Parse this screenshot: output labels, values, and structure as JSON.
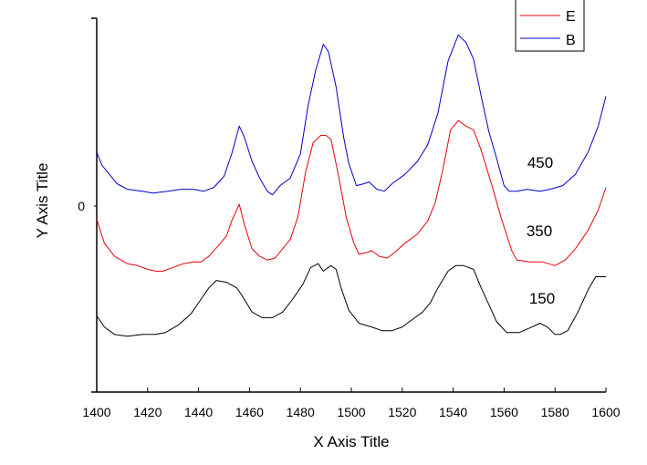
{
  "chart_data": {
    "type": "line",
    "title": "",
    "xlabel": "X Axis Title",
    "ylabel": "Y Axis Title",
    "xlim": [
      1400,
      1600
    ],
    "x_ticks": [
      1400,
      1420,
      1440,
      1460,
      1480,
      1500,
      1520,
      1540,
      1560,
      1580,
      1600
    ],
    "y_tick_labels": [
      "0"
    ],
    "ylim": [
      -1.0,
      1.0
    ],
    "legend": {
      "placement": "top-right",
      "entries": [
        {
          "label": "E",
          "color": "#e8000b"
        },
        {
          "label": "B",
          "color": "#0000cc"
        }
      ]
    },
    "annotations": [
      "450",
      "350",
      "150"
    ],
    "series": [
      {
        "name": "B",
        "color": "#0000cc",
        "points": [
          [
            1400,
            0.29
          ],
          [
            1402,
            0.22
          ],
          [
            1405,
            0.17
          ],
          [
            1408,
            0.12
          ],
          [
            1412,
            0.09
          ],
          [
            1418,
            0.08
          ],
          [
            1422,
            0.07
          ],
          [
            1428,
            0.08
          ],
          [
            1433,
            0.09
          ],
          [
            1438,
            0.09
          ],
          [
            1442,
            0.08
          ],
          [
            1446,
            0.1
          ],
          [
            1450,
            0.16
          ],
          [
            1453,
            0.28
          ],
          [
            1456,
            0.43
          ],
          [
            1458,
            0.37
          ],
          [
            1461,
            0.24
          ],
          [
            1464,
            0.15
          ],
          [
            1467,
            0.08
          ],
          [
            1469,
            0.06
          ],
          [
            1472,
            0.11
          ],
          [
            1476,
            0.15
          ],
          [
            1480,
            0.28
          ],
          [
            1483,
            0.54
          ],
          [
            1486,
            0.73
          ],
          [
            1489,
            0.87
          ],
          [
            1491,
            0.83
          ],
          [
            1494,
            0.64
          ],
          [
            1497,
            0.37
          ],
          [
            1499,
            0.23
          ],
          [
            1502,
            0.11
          ],
          [
            1505,
            0.12
          ],
          [
            1507,
            0.13
          ],
          [
            1510,
            0.09
          ],
          [
            1513,
            0.08
          ],
          [
            1516,
            0.12
          ],
          [
            1521,
            0.17
          ],
          [
            1526,
            0.24
          ],
          [
            1530,
            0.33
          ],
          [
            1534,
            0.5
          ],
          [
            1538,
            0.78
          ],
          [
            1542,
            0.92
          ],
          [
            1545,
            0.88
          ],
          [
            1548,
            0.79
          ],
          [
            1551,
            0.59
          ],
          [
            1554,
            0.4
          ],
          [
            1557,
            0.26
          ],
          [
            1560,
            0.11
          ],
          [
            1562,
            0.08
          ],
          [
            1565,
            0.08
          ],
          [
            1569,
            0.09
          ],
          [
            1574,
            0.08
          ],
          [
            1578,
            0.09
          ],
          [
            1583,
            0.11
          ],
          [
            1588,
            0.17
          ],
          [
            1593,
            0.29
          ],
          [
            1597,
            0.43
          ],
          [
            1600,
            0.59
          ]
        ]
      },
      {
        "name": "E",
        "color": "#e8000b",
        "points": [
          [
            1400,
            -0.07
          ],
          [
            1403,
            -0.2
          ],
          [
            1407,
            -0.27
          ],
          [
            1412,
            -0.31
          ],
          [
            1416,
            -0.32
          ],
          [
            1420,
            -0.34
          ],
          [
            1423,
            -0.35
          ],
          [
            1426,
            -0.35
          ],
          [
            1430,
            -0.33
          ],
          [
            1434,
            -0.31
          ],
          [
            1438,
            -0.3
          ],
          [
            1441,
            -0.3
          ],
          [
            1444,
            -0.27
          ],
          [
            1448,
            -0.21
          ],
          [
            1451,
            -0.16
          ],
          [
            1453,
            -0.08
          ],
          [
            1456,
            0.01
          ],
          [
            1458,
            -0.1
          ],
          [
            1461,
            -0.23
          ],
          [
            1464,
            -0.27
          ],
          [
            1467,
            -0.29
          ],
          [
            1470,
            -0.28
          ],
          [
            1473,
            -0.23
          ],
          [
            1476,
            -0.18
          ],
          [
            1479,
            -0.06
          ],
          [
            1482,
            0.18
          ],
          [
            1485,
            0.34
          ],
          [
            1488,
            0.38
          ],
          [
            1490,
            0.38
          ],
          [
            1492,
            0.36
          ],
          [
            1495,
            0.16
          ],
          [
            1498,
            -0.06
          ],
          [
            1501,
            -0.2
          ],
          [
            1503,
            -0.26
          ],
          [
            1506,
            -0.25
          ],
          [
            1508,
            -0.24
          ],
          [
            1511,
            -0.27
          ],
          [
            1514,
            -0.28
          ],
          [
            1517,
            -0.25
          ],
          [
            1521,
            -0.2
          ],
          [
            1526,
            -0.15
          ],
          [
            1530,
            -0.08
          ],
          [
            1533,
            0.02
          ],
          [
            1536,
            0.2
          ],
          [
            1539,
            0.41
          ],
          [
            1542,
            0.46
          ],
          [
            1545,
            0.43
          ],
          [
            1548,
            0.41
          ],
          [
            1551,
            0.3
          ],
          [
            1555,
            0.12
          ],
          [
            1559,
            -0.07
          ],
          [
            1563,
            -0.24
          ],
          [
            1565,
            -0.29
          ],
          [
            1570,
            -0.3
          ],
          [
            1575,
            -0.3
          ],
          [
            1580,
            -0.32
          ],
          [
            1584,
            -0.29
          ],
          [
            1588,
            -0.23
          ],
          [
            1593,
            -0.13
          ],
          [
            1597,
            -0.02
          ],
          [
            1600,
            0.1
          ]
        ]
      },
      {
        "name": "",
        "color": "#000000",
        "points": [
          [
            1400,
            -0.59
          ],
          [
            1403,
            -0.65
          ],
          [
            1407,
            -0.69
          ],
          [
            1412,
            -0.7
          ],
          [
            1418,
            -0.69
          ],
          [
            1423,
            -0.69
          ],
          [
            1427,
            -0.68
          ],
          [
            1432,
            -0.64
          ],
          [
            1437,
            -0.58
          ],
          [
            1441,
            -0.5
          ],
          [
            1444,
            -0.44
          ],
          [
            1447,
            -0.4
          ],
          [
            1451,
            -0.41
          ],
          [
            1455,
            -0.44
          ],
          [
            1457,
            -0.48
          ],
          [
            1461,
            -0.57
          ],
          [
            1465,
            -0.6
          ],
          [
            1469,
            -0.6
          ],
          [
            1473,
            -0.57
          ],
          [
            1477,
            -0.5
          ],
          [
            1481,
            -0.42
          ],
          [
            1484,
            -0.33
          ],
          [
            1487,
            -0.31
          ],
          [
            1489,
            -0.35
          ],
          [
            1492,
            -0.32
          ],
          [
            1494,
            -0.34
          ],
          [
            1496,
            -0.44
          ],
          [
            1499,
            -0.56
          ],
          [
            1503,
            -0.63
          ],
          [
            1508,
            -0.65
          ],
          [
            1512,
            -0.67
          ],
          [
            1516,
            -0.67
          ],
          [
            1520,
            -0.65
          ],
          [
            1524,
            -0.61
          ],
          [
            1528,
            -0.57
          ],
          [
            1531,
            -0.52
          ],
          [
            1534,
            -0.44
          ],
          [
            1538,
            -0.35
          ],
          [
            1541,
            -0.32
          ],
          [
            1544,
            -0.32
          ],
          [
            1548,
            -0.34
          ],
          [
            1551,
            -0.44
          ],
          [
            1554,
            -0.53
          ],
          [
            1557,
            -0.62
          ],
          [
            1561,
            -0.68
          ],
          [
            1566,
            -0.68
          ],
          [
            1571,
            -0.65
          ],
          [
            1574,
            -0.63
          ],
          [
            1577,
            -0.65
          ],
          [
            1580,
            -0.69
          ],
          [
            1582,
            -0.69
          ],
          [
            1585,
            -0.67
          ],
          [
            1589,
            -0.57
          ],
          [
            1593,
            -0.45
          ],
          [
            1596,
            -0.38
          ],
          [
            1600,
            -0.38
          ]
        ]
      }
    ]
  }
}
